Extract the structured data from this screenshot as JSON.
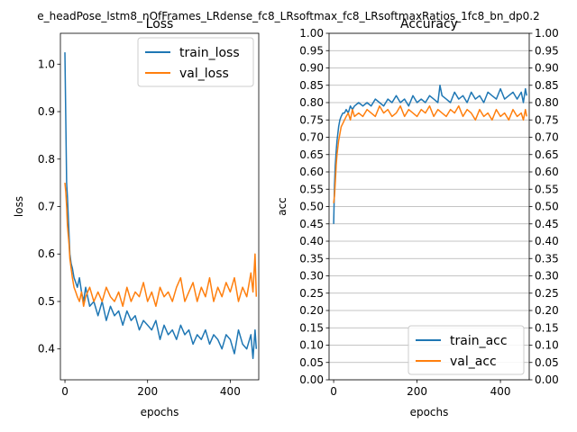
{
  "figure": {
    "suptitle": "e_headPose_lstm8_nOfFrames_LRdense_fc8_LRsoftmax_fc8_LRsoftmaxRatios_1fc8_bn_dp0.2"
  },
  "colors": {
    "train": "#1f77b4",
    "val": "#ff7f0e",
    "grid": "#b0b0b0"
  },
  "chart_data": [
    {
      "type": "line",
      "title": "Loss",
      "xlabel": "epochs",
      "ylabel": "loss",
      "xlim": [
        -11,
        469
      ],
      "ylim": [
        0.335,
        1.065
      ],
      "xticks": [
        0,
        200,
        400
      ],
      "yticks": [
        0.4,
        0.5,
        0.6,
        0.7,
        0.8,
        0.9,
        1.0
      ],
      "grid": false,
      "legend": "upper-right",
      "series": [
        {
          "name": "train_loss",
          "color": "#1f77b4",
          "x": [
            0,
            2,
            4,
            6,
            8,
            10,
            12,
            15,
            18,
            22,
            26,
            30,
            35,
            40,
            45,
            50,
            60,
            70,
            80,
            90,
            100,
            110,
            120,
            130,
            140,
            150,
            160,
            170,
            180,
            190,
            200,
            210,
            220,
            230,
            240,
            250,
            260,
            270,
            280,
            290,
            300,
            310,
            320,
            330,
            340,
            350,
            360,
            370,
            380,
            390,
            400,
            410,
            420,
            430,
            440,
            450,
            455,
            460,
            463
          ],
          "y": [
            1.025,
            0.88,
            0.75,
            0.72,
            0.68,
            0.64,
            0.6,
            0.58,
            0.57,
            0.55,
            0.54,
            0.53,
            0.55,
            0.52,
            0.5,
            0.53,
            0.49,
            0.5,
            0.47,
            0.5,
            0.46,
            0.49,
            0.47,
            0.48,
            0.45,
            0.48,
            0.46,
            0.47,
            0.44,
            0.46,
            0.45,
            0.44,
            0.46,
            0.42,
            0.45,
            0.43,
            0.44,
            0.42,
            0.45,
            0.43,
            0.44,
            0.41,
            0.43,
            0.42,
            0.44,
            0.41,
            0.43,
            0.42,
            0.4,
            0.43,
            0.42,
            0.39,
            0.44,
            0.41,
            0.4,
            0.43,
            0.38,
            0.44,
            0.4
          ]
        },
        {
          "name": "val_loss",
          "color": "#ff7f0e",
          "x": [
            0,
            2,
            4,
            6,
            8,
            10,
            12,
            15,
            18,
            22,
            26,
            30,
            35,
            40,
            45,
            50,
            60,
            70,
            80,
            90,
            100,
            110,
            120,
            130,
            140,
            150,
            160,
            170,
            180,
            190,
            200,
            210,
            220,
            230,
            240,
            250,
            260,
            270,
            280,
            290,
            300,
            310,
            320,
            330,
            340,
            350,
            360,
            370,
            380,
            390,
            400,
            410,
            420,
            430,
            440,
            450,
            455,
            460,
            463
          ],
          "y": [
            0.75,
            0.73,
            0.7,
            0.66,
            0.64,
            0.62,
            0.59,
            0.57,
            0.55,
            0.53,
            0.52,
            0.51,
            0.5,
            0.52,
            0.49,
            0.51,
            0.53,
            0.5,
            0.52,
            0.5,
            0.53,
            0.51,
            0.5,
            0.52,
            0.49,
            0.53,
            0.5,
            0.52,
            0.51,
            0.54,
            0.5,
            0.52,
            0.49,
            0.53,
            0.51,
            0.52,
            0.5,
            0.53,
            0.55,
            0.5,
            0.52,
            0.54,
            0.5,
            0.53,
            0.51,
            0.55,
            0.5,
            0.53,
            0.51,
            0.54,
            0.52,
            0.55,
            0.5,
            0.53,
            0.51,
            0.56,
            0.52,
            0.6,
            0.51
          ]
        }
      ]
    },
    {
      "type": "line",
      "title": "Accuracy",
      "xlabel": "epochs",
      "ylabel": "acc",
      "xlim": [
        -11,
        469
      ],
      "ylim": [
        0.0,
        1.0
      ],
      "xticks": [
        0,
        200,
        400
      ],
      "yticks": [
        0.0,
        0.05,
        0.1,
        0.15,
        0.2,
        0.25,
        0.3,
        0.35,
        0.4,
        0.45,
        0.5,
        0.55,
        0.6,
        0.65,
        0.7,
        0.75,
        0.8,
        0.85,
        0.9,
        0.95,
        1.0
      ],
      "right_axis_ticks": true,
      "grid": true,
      "legend": "lower-right",
      "series": [
        {
          "name": "train_acc",
          "color": "#1f77b4",
          "x": [
            0,
            2,
            4,
            6,
            8,
            10,
            12,
            15,
            18,
            22,
            26,
            30,
            35,
            40,
            45,
            50,
            60,
            70,
            80,
            90,
            100,
            110,
            120,
            130,
            140,
            150,
            160,
            170,
            180,
            190,
            200,
            210,
            220,
            230,
            240,
            250,
            255,
            260,
            270,
            280,
            290,
            300,
            310,
            320,
            330,
            340,
            350,
            360,
            370,
            380,
            390,
            400,
            410,
            420,
            430,
            440,
            450,
            455,
            460,
            463
          ],
          "y": [
            0.45,
            0.56,
            0.62,
            0.66,
            0.69,
            0.71,
            0.73,
            0.75,
            0.76,
            0.77,
            0.77,
            0.78,
            0.77,
            0.79,
            0.78,
            0.79,
            0.8,
            0.79,
            0.8,
            0.79,
            0.81,
            0.8,
            0.79,
            0.81,
            0.8,
            0.82,
            0.8,
            0.81,
            0.79,
            0.82,
            0.8,
            0.81,
            0.8,
            0.82,
            0.81,
            0.8,
            0.85,
            0.82,
            0.81,
            0.8,
            0.83,
            0.81,
            0.82,
            0.8,
            0.83,
            0.81,
            0.82,
            0.8,
            0.83,
            0.82,
            0.81,
            0.84,
            0.81,
            0.82,
            0.83,
            0.81,
            0.83,
            0.8,
            0.84,
            0.82
          ]
        },
        {
          "name": "val_acc",
          "color": "#ff7f0e",
          "x": [
            0,
            2,
            4,
            6,
            8,
            10,
            12,
            15,
            18,
            22,
            26,
            30,
            35,
            40,
            45,
            50,
            60,
            70,
            80,
            90,
            100,
            110,
            120,
            130,
            140,
            150,
            160,
            170,
            180,
            190,
            200,
            210,
            220,
            230,
            240,
            250,
            260,
            270,
            280,
            290,
            300,
            310,
            320,
            330,
            340,
            350,
            360,
            370,
            380,
            390,
            400,
            410,
            420,
            430,
            440,
            450,
            455,
            460,
            463
          ],
          "y": [
            0.51,
            0.53,
            0.57,
            0.62,
            0.65,
            0.67,
            0.69,
            0.71,
            0.73,
            0.74,
            0.75,
            0.76,
            0.77,
            0.75,
            0.78,
            0.76,
            0.77,
            0.76,
            0.78,
            0.77,
            0.76,
            0.79,
            0.77,
            0.78,
            0.76,
            0.77,
            0.79,
            0.76,
            0.78,
            0.77,
            0.76,
            0.78,
            0.77,
            0.79,
            0.76,
            0.78,
            0.77,
            0.76,
            0.78,
            0.77,
            0.79,
            0.76,
            0.78,
            0.77,
            0.75,
            0.78,
            0.76,
            0.77,
            0.75,
            0.78,
            0.76,
            0.77,
            0.75,
            0.78,
            0.76,
            0.77,
            0.75,
            0.78,
            0.76
          ]
        }
      ]
    }
  ]
}
